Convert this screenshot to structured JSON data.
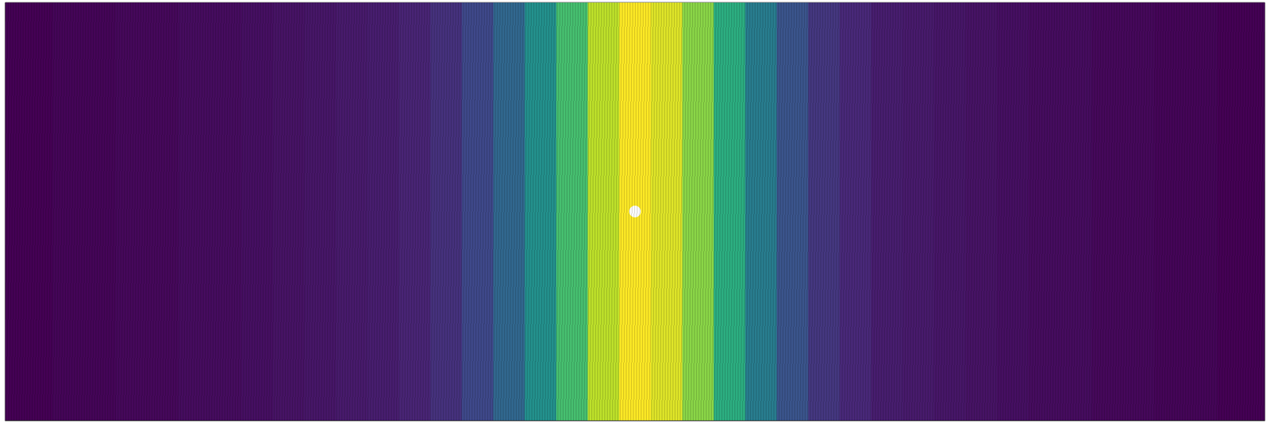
{
  "chart_data": {
    "type": "heatmap",
    "x": [
      0,
      0.025,
      0.05,
      0.075,
      0.1,
      0.125,
      0.15,
      0.175,
      0.2,
      0.225,
      0.25,
      0.275,
      0.3,
      0.325,
      0.35,
      0.375,
      0.4,
      0.425,
      0.45,
      0.475,
      0.5,
      0.525,
      0.55,
      0.575,
      0.6,
      0.625,
      0.65,
      0.675,
      0.7,
      0.725,
      0.75,
      0.775,
      0.8,
      0.825,
      0.85,
      0.875,
      0.9,
      0.925,
      0.95,
      0.975,
      1
    ],
    "values": [
      0,
      0,
      0.01,
      0.01,
      0.02,
      0.02,
      0.03,
      0.03,
      0.04,
      0.05,
      0.06,
      0.07,
      0.08,
      0.1,
      0.14,
      0.22,
      0.33,
      0.5,
      0.7,
      0.9,
      1,
      0.95,
      0.82,
      0.62,
      0.42,
      0.26,
      0.16,
      0.11,
      0.08,
      0.07,
      0.06,
      0.05,
      0.04,
      0.03,
      0.03,
      0.02,
      0.02,
      0.01,
      0.01,
      0,
      0
    ],
    "xlim": [
      0,
      1
    ],
    "tick_labels": false,
    "grid": false
  }
}
